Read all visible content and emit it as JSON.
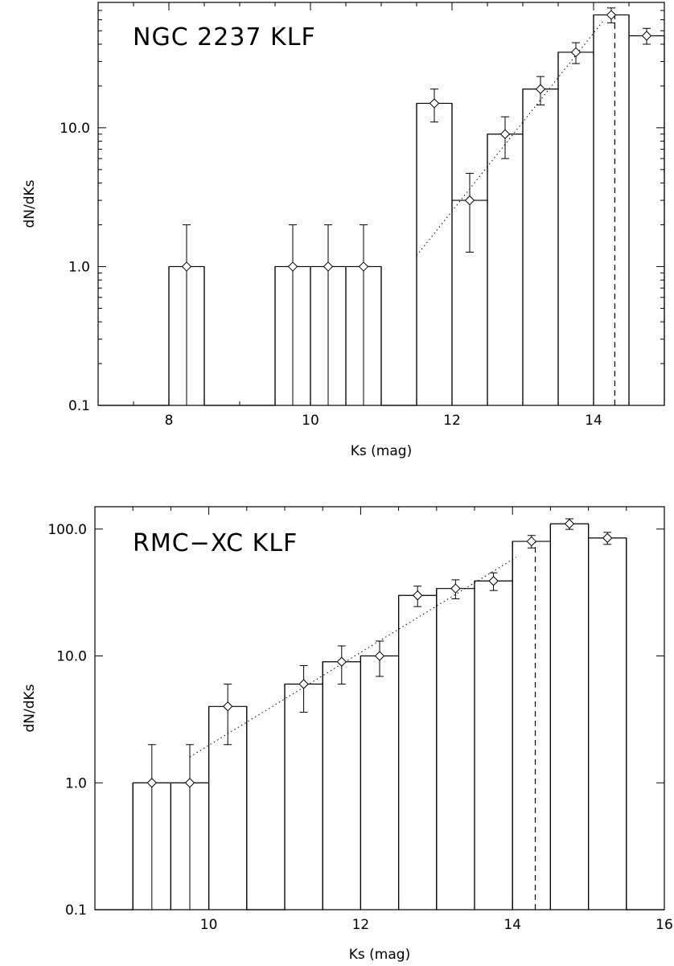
{
  "chart_data": [
    {
      "type": "bar",
      "title": "NGC 2237 KLF",
      "xlabel": "Ks (mag)",
      "ylabel": "dN/dKs",
      "xlim": [
        7.0,
        15.0
      ],
      "ylim": [
        0.1,
        80
      ],
      "yscale": "log",
      "xticks": [
        8,
        10,
        12,
        14
      ],
      "xtick_labels": [
        "8",
        "10",
        "12",
        "14"
      ],
      "yticks": [
        0.1,
        1.0,
        10.0
      ],
      "ytick_labels": [
        "0.1",
        "1.0",
        "10.0"
      ],
      "histogram": {
        "bin_edges": [
          7.0,
          7.5,
          8.0,
          8.5,
          9.0,
          9.5,
          10.0,
          10.5,
          11.0,
          11.5,
          12.0,
          12.5,
          13.0,
          13.5,
          14.0,
          14.5,
          15.0
        ],
        "values": [
          0.1,
          0.1,
          1,
          0.1,
          0.1,
          1,
          1,
          1,
          0.1,
          15,
          3,
          9,
          19,
          35,
          65,
          46
        ]
      },
      "points": {
        "x": [
          8.25,
          9.75,
          10.25,
          10.75,
          11.75,
          12.25,
          12.75,
          13.25,
          13.75,
          14.25,
          14.75
        ],
        "y": [
          1,
          1,
          1,
          1,
          15,
          3,
          9,
          19,
          35,
          65,
          46
        ],
        "yerr_low": [
          0.1,
          0.1,
          0.1,
          0.1,
          11,
          1.27,
          6,
          14.6,
          29,
          57,
          40
        ],
        "yerr_high": [
          2,
          2,
          2,
          2,
          19,
          4.7,
          12,
          23.4,
          41,
          73,
          52
        ]
      },
      "fit_line": {
        "x": [
          11.5,
          14.15
        ],
        "y": [
          1.2,
          60
        ]
      },
      "completeness_limit": 14.3
    },
    {
      "type": "bar",
      "title": "RMC−XC KLF",
      "xlabel": "Ks (mag)",
      "ylabel": "dN/dKs",
      "xlim": [
        8.5,
        16.0
      ],
      "ylim": [
        0.1,
        150
      ],
      "yscale": "log",
      "xticks": [
        10,
        12,
        14,
        16
      ],
      "xtick_labels": [
        "10",
        "12",
        "14",
        "16"
      ],
      "yticks": [
        0.1,
        1.0,
        10.0,
        100.0
      ],
      "ytick_labels": [
        "0.1",
        "1.0",
        "10.0",
        "100.0"
      ],
      "histogram": {
        "bin_edges": [
          8.5,
          9.0,
          9.5,
          10.0,
          10.5,
          11.0,
          11.5,
          12.0,
          12.5,
          13.0,
          13.5,
          14.0,
          14.5,
          15.0,
          15.5,
          16.0
        ],
        "values": [
          0.1,
          1,
          1,
          4,
          0.1,
          6,
          9,
          10,
          30,
          34,
          39,
          80,
          110,
          85,
          0.1
        ]
      },
      "points": {
        "x": [
          9.25,
          9.75,
          10.25,
          11.25,
          11.75,
          12.25,
          12.75,
          13.25,
          13.75,
          14.25,
          14.75,
          15.25
        ],
        "y": [
          1,
          1,
          4,
          6,
          9,
          10,
          30,
          34,
          39,
          80,
          110,
          85
        ],
        "yerr_low": [
          0.1,
          0.1,
          2,
          3.6,
          6,
          6.9,
          24.5,
          28.2,
          32.8,
          71,
          99.5,
          75.8
        ],
        "yerr_high": [
          2,
          2,
          6,
          8.4,
          12,
          13.1,
          35.5,
          39.8,
          45.2,
          89,
          120.5,
          94.2
        ]
      },
      "fit_line": {
        "x": [
          9.75,
          14.05
        ],
        "y": [
          1.6,
          60
        ]
      },
      "completeness_limit": 14.3
    }
  ]
}
